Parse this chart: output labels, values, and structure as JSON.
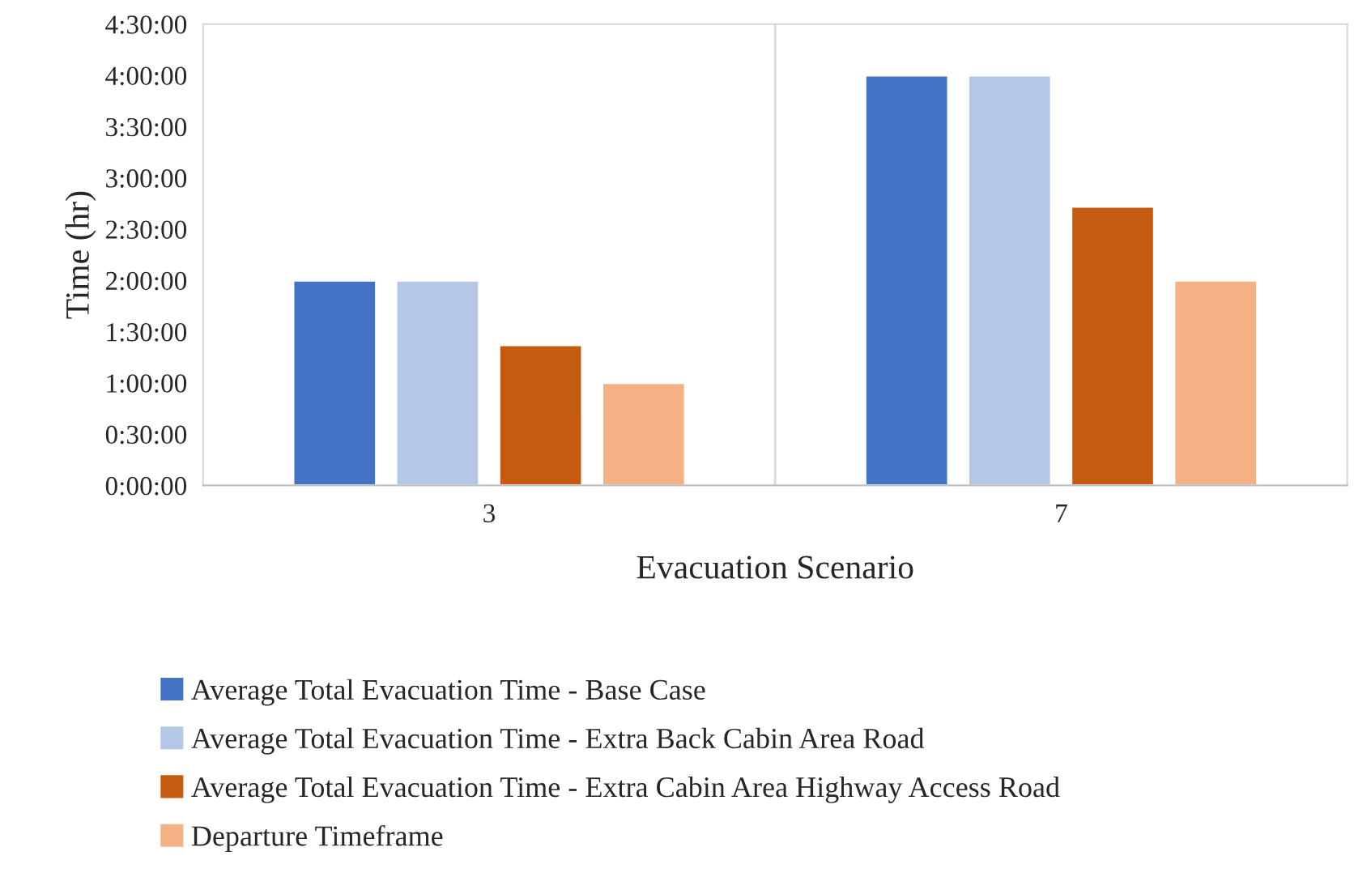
{
  "chart_data": {
    "type": "bar",
    "xlabel": "Evacuation Scenario",
    "ylabel": "Time (hr)",
    "categories": [
      "3",
      "7"
    ],
    "series": [
      {
        "name": "Average Total Evacuation Time - Base Case",
        "color": "#4472c4",
        "values": [
          2.0,
          4.0
        ]
      },
      {
        "name": "Average Total Evacuation Time - Extra Back Cabin Area Road",
        "color": "#b4c7e7",
        "values": [
          2.0,
          4.0
        ]
      },
      {
        "name": "Average Total Evacuation Time - Extra Cabin Area Highway Access Road",
        "color": "#c55a11",
        "values": [
          1.37,
          2.72
        ]
      },
      {
        "name": "Departure Timeframe",
        "color": "#f4b183",
        "values": [
          1.0,
          2.0
        ]
      }
    ],
    "ylim": [
      0,
      4.5
    ],
    "yticks": [
      {
        "value": 0,
        "label": "0:00:00"
      },
      {
        "value": 0.5,
        "label": "0:30:00"
      },
      {
        "value": 1,
        "label": "1:00:00"
      },
      {
        "value": 1.5,
        "label": "1:30:00"
      },
      {
        "value": 2,
        "label": "2:00:00"
      },
      {
        "value": 2.5,
        "label": "2:30:00"
      },
      {
        "value": 3,
        "label": "3:00:00"
      },
      {
        "value": 3.5,
        "label": "3:30:00"
      },
      {
        "value": 4,
        "label": "4:00:00"
      },
      {
        "value": 4.5,
        "label": "4:30:00"
      }
    ],
    "grid": "x",
    "legend": "bottom"
  }
}
